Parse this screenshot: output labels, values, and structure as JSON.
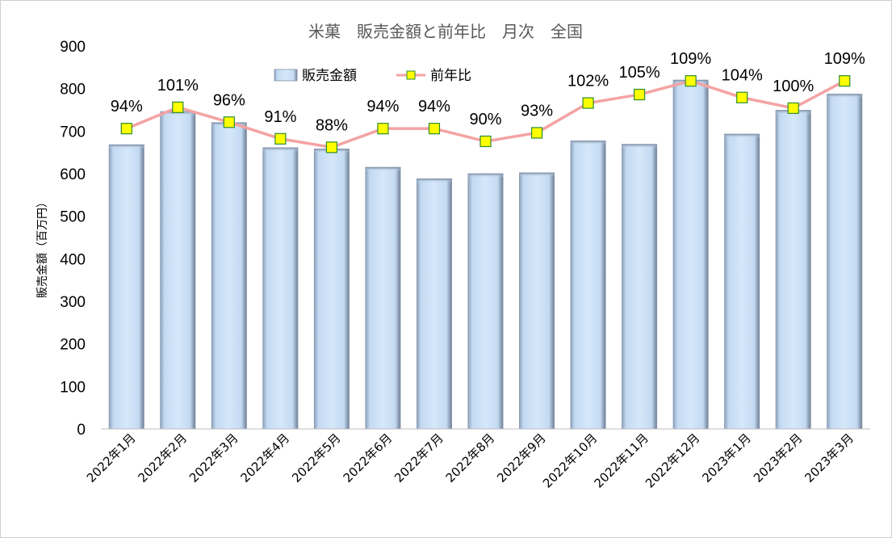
{
  "chart_data": {
    "type": "bar",
    "title": "米菓　販売金額と前年比　月次　全国",
    "ylabel": "販売金額（百万円）",
    "xlabel": "",
    "ylim": [
      0,
      900
    ],
    "yticks": [
      0,
      100,
      200,
      300,
      400,
      500,
      600,
      700,
      800,
      900
    ],
    "categories": [
      "2022年1月",
      "2022年2月",
      "2022年3月",
      "2022年4月",
      "2022年5月",
      "2022年6月",
      "2022年7月",
      "2022年8月",
      "2022年9月",
      "2022年10月",
      "2022年11月",
      "2022年12月",
      "2023年1月",
      "2023年2月",
      "2023年3月"
    ],
    "series": [
      {
        "name": "販売金額",
        "type": "bar",
        "values": [
          668,
          746,
          720,
          661,
          658,
          615,
          588,
          600,
          602,
          677,
          669,
          820,
          693,
          749,
          787
        ]
      },
      {
        "name": "前年比",
        "type": "line",
        "values": [
          94,
          101,
          96,
          91,
          88,
          94,
          94,
          90,
          93,
          102,
          105,
          109,
          104,
          100,
          109
        ],
        "labels": [
          "94%",
          "101%",
          "96%",
          "91%",
          "88%",
          "94%",
          "94%",
          "90%",
          "93%",
          "102%",
          "105%",
          "109%",
          "104%",
          "100%",
          "109%"
        ],
        "y_position_on_left_axis": [
          706,
          756,
          721,
          682,
          662,
          706,
          706,
          676,
          696,
          766,
          786,
          818,
          779,
          754,
          818
        ]
      }
    ],
    "legend": {
      "placement": "top-center",
      "entries": [
        "販売金額",
        "前年比"
      ]
    },
    "grid": false,
    "colors": {
      "bar_light": "#cfe3f7",
      "bar_edge": "#7f8fa6",
      "line": "#f4a3a3",
      "marker_fill": "#ffff00",
      "marker_edge": "#2e8b2e",
      "title": "#595959"
    }
  }
}
